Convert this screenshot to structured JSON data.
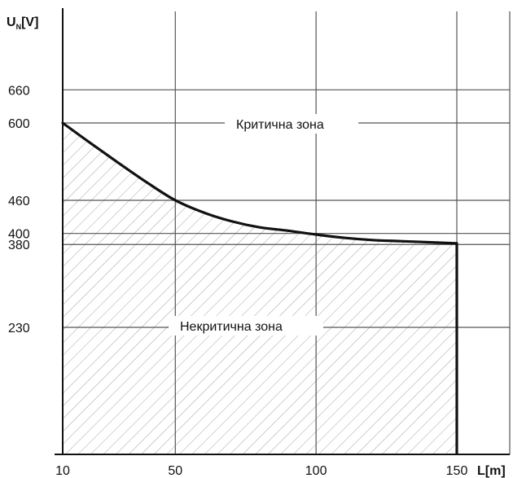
{
  "chart_data": {
    "type": "line",
    "title": "",
    "ylabel_main": "U",
    "ylabel_sub": "N",
    "ylabel_unit": "[V]",
    "xlabel": "L[m]",
    "x_ticks": [
      10,
      50,
      100,
      150
    ],
    "y_ticks": [
      230,
      380,
      400,
      460,
      600,
      660
    ],
    "xlim": [
      10,
      160
    ],
    "ylim": [
      0,
      860
    ],
    "grid": true,
    "series": [
      {
        "x": [
          10,
          20,
          30,
          40,
          50,
          60,
          70,
          80,
          90,
          100,
          110,
          120,
          130,
          140,
          150
        ],
        "values": [
          600,
          563,
          527,
          492,
          460,
          438,
          422,
          411,
          405,
          398,
          392,
          388,
          386,
          384,
          382
        ]
      }
    ],
    "drop_line": {
      "x": 150,
      "from": 382,
      "to": 0
    },
    "annotations": [
      {
        "text": "Критична зона",
        "zone": "critical"
      },
      {
        "text": "Некритична зона",
        "zone": "non-critical"
      }
    ]
  }
}
